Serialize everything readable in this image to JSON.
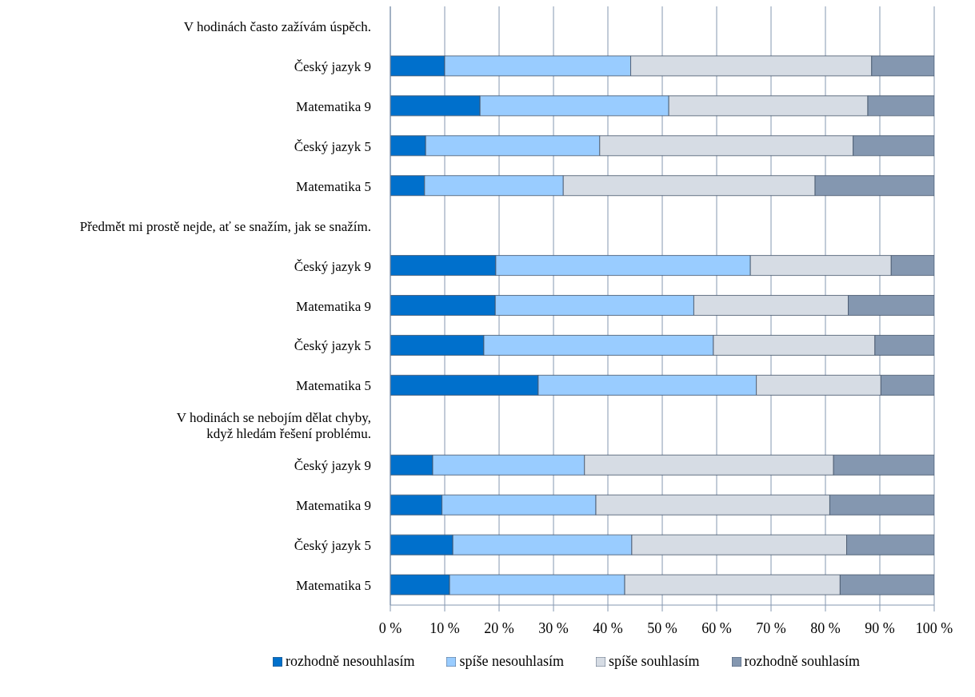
{
  "chart_data": {
    "type": "bar",
    "orientation": "horizontal",
    "stacked": true,
    "categories": [
      "V hodinách často zažívám úspěch.",
      "Český jazyk 9",
      "Matematika 9",
      "Český jazyk 5",
      "Matematika 5",
      "Předmět mi prostě nejde, ať se snažím, jak se snažím.",
      "Český jazyk 9",
      "Matematika 9",
      "Český jazyk 5",
      "Matematika 5",
      "V hodinách se nebojím dělat chyby,\nkdyž hledám řešení problému.",
      "Český jazyk 9",
      "Matematika 9",
      "Český jazyk 5",
      "Matematika 5"
    ],
    "series": [
      {
        "name": "rozhodně nesouhlasím",
        "color": "#0070cc",
        "values": [
          null,
          10.0,
          16.5,
          6.5,
          6.3,
          null,
          19.4,
          19.3,
          17.2,
          27.2,
          null,
          7.8,
          9.5,
          11.5,
          10.9
        ]
      },
      {
        "name": "spíše nesouhlasím",
        "color": "#99ccff",
        "values": [
          null,
          34.2,
          34.7,
          32.0,
          25.5,
          null,
          46.8,
          36.5,
          42.2,
          40.1,
          null,
          27.9,
          28.3,
          32.9,
          32.2
        ]
      },
      {
        "name": "spíše souhlasím",
        "color": "#d6dce4",
        "values": [
          null,
          44.3,
          36.6,
          46.6,
          46.3,
          null,
          25.9,
          28.4,
          29.7,
          22.9,
          null,
          45.8,
          43.0,
          39.5,
          39.6
        ]
      },
      {
        "name": "rozhodně souhlasím",
        "color": "#8497b0",
        "values": [
          null,
          11.5,
          12.2,
          14.9,
          21.9,
          null,
          7.9,
          15.8,
          10.9,
          9.8,
          null,
          18.5,
          19.2,
          16.1,
          17.3
        ]
      }
    ],
    "xlim": [
      0,
      100
    ],
    "xticks": [
      {
        "value": 0,
        "label": "0 %"
      },
      {
        "value": 10,
        "label": "10 %"
      },
      {
        "value": 20,
        "label": "20 %"
      },
      {
        "value": 30,
        "label": "30 %"
      },
      {
        "value": 40,
        "label": "40 %"
      },
      {
        "value": 50,
        "label": "50 %"
      },
      {
        "value": 60,
        "label": "60 %"
      },
      {
        "value": 70,
        "label": "70 %"
      },
      {
        "value": 80,
        "label": "80 %"
      },
      {
        "value": 90,
        "label": "90 %"
      },
      {
        "value": 100,
        "label": "100 %"
      }
    ],
    "grid": "x",
    "legend": "bottom"
  }
}
